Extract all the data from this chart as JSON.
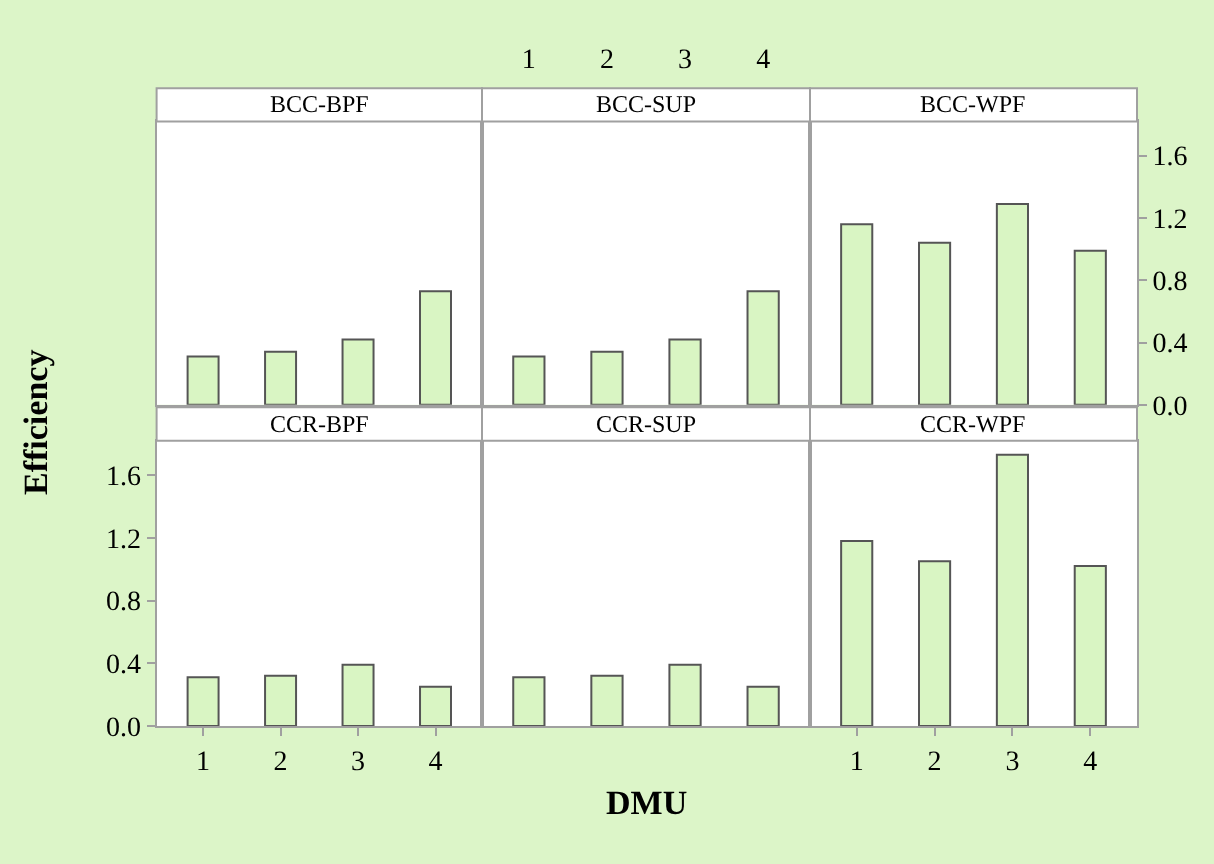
{
  "chart_data": [
    {
      "type": "bar",
      "title": "BCC-BPF",
      "categories": [
        "1",
        "2",
        "3",
        "4"
      ],
      "values": [
        0.31,
        0.34,
        0.42,
        0.73
      ],
      "color": "#d9f5c3",
      "ylim": [
        0,
        1.82
      ],
      "tick_labels": false
    },
    {
      "type": "bar",
      "title": "BCC-SUP",
      "categories": [
        "1",
        "2",
        "3",
        "4"
      ],
      "values": [
        0.31,
        0.34,
        0.42,
        0.73
      ],
      "color": "#d9f5c3",
      "ylim": [
        0,
        1.82
      ],
      "tick_labels": "x"
    },
    {
      "type": "bar",
      "title": "BCC-WPF",
      "categories": [
        "1",
        "2",
        "3",
        "4"
      ],
      "values": [
        1.16,
        1.04,
        1.29,
        0.99
      ],
      "color": "#d9f5c3",
      "ylim": [
        0,
        1.82
      ],
      "yticks": [
        {
          "value": 0,
          "label": "0.0"
        },
        0.4,
        0.8,
        1.2,
        1.6
      ],
      "tick_labels": "y"
    },
    {
      "type": "bar",
      "title": "CCR-BPF",
      "ylabel": "Efficiency",
      "categories": [
        "1",
        "2",
        "3",
        "4"
      ],
      "values": [
        0.31,
        0.32,
        0.39,
        0.25
      ],
      "color": "#d9f5c3",
      "ylim": [
        0,
        1.82
      ],
      "yticks": [
        {
          "value": 0,
          "label": "0.0"
        },
        0.4,
        0.8,
        1.2,
        1.6
      ]
    },
    {
      "type": "bar",
      "title": "CCR-SUP",
      "xlabel": "DMU",
      "categories": [
        "1",
        "2",
        "3",
        "4"
      ],
      "values": [
        0.31,
        0.32,
        0.39,
        0.25
      ],
      "color": "#d9f5c3",
      "ylim": [
        0,
        1.82
      ],
      "tick_labels": false
    },
    {
      "type": "bar",
      "title": "CCR-WPF",
      "categories": [
        "1",
        "2",
        "3",
        "4"
      ],
      "values": [
        1.18,
        1.05,
        1.73,
        1.02
      ],
      "color": "#d9f5c3",
      "ylim": [
        0,
        1.82
      ],
      "tick_labels": "x"
    }
  ]
}
